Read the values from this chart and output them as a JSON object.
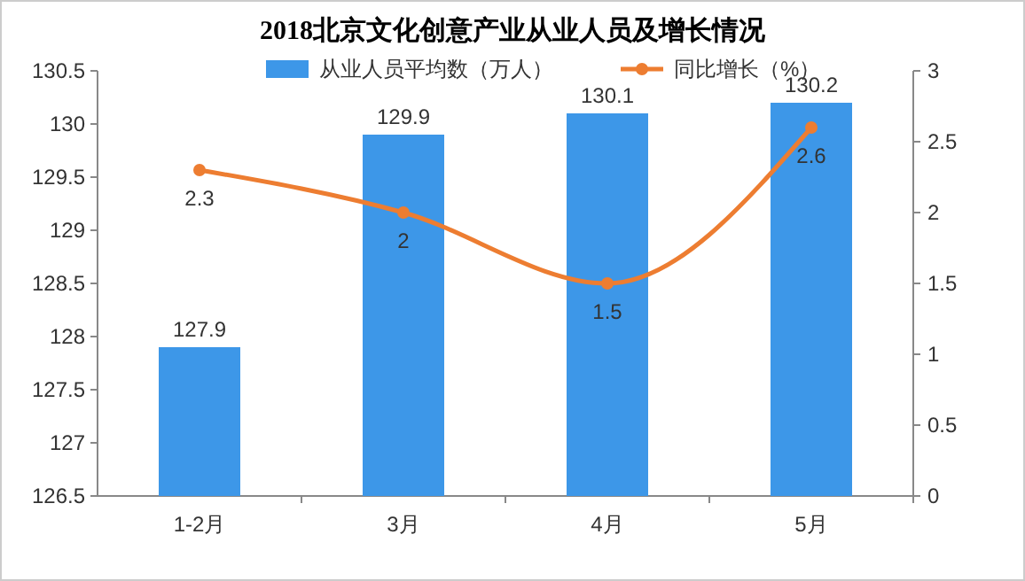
{
  "chart_data": {
    "type": "bar",
    "title": "2018北京文化创意产业从业人员及增长情况",
    "categories": [
      "1-2月",
      "3月",
      "4月",
      "5月"
    ],
    "series": [
      {
        "name": "从业人员平均数（万人）",
        "color": "#3d97e8",
        "values": [
          127.9,
          129.9,
          130.1,
          130.2
        ]
      },
      {
        "name": "同比增长（%）",
        "type": "line",
        "axis": "y2",
        "color": "#ed7d31",
        "values": [
          2.3,
          2,
          1.5,
          2.6
        ]
      }
    ],
    "ylim": [
      126.5,
      130.5
    ],
    "yticks": [
      126.5,
      127,
      127.5,
      128,
      128.5,
      129,
      129.5,
      130,
      130.5
    ],
    "y2lim": [
      0,
      3
    ],
    "y2ticks": [
      0,
      0.5,
      1,
      1.5,
      2,
      2.5,
      3
    ],
    "data_labels": true,
    "legend": "top",
    "marker": "circle",
    "grid": false
  }
}
